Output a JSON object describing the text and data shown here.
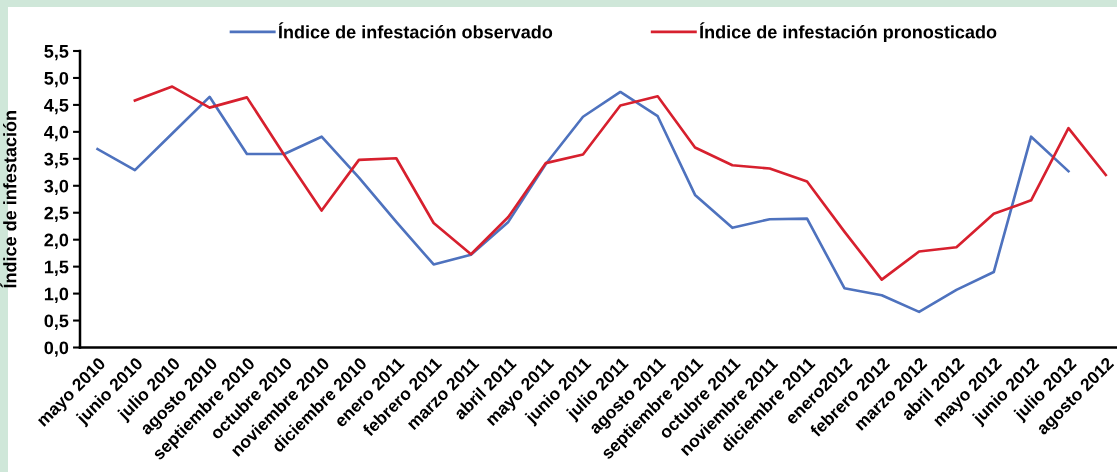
{
  "chart_data": {
    "type": "line",
    "ylabel": "Índice de infestación",
    "categories": [
      "mayo 2010",
      "junio 2010",
      "julio 2010",
      "agosto 2010",
      "septiembre 2010",
      "octubre 2010",
      "noviembre 2010",
      "diciembre 2010",
      "enero 2011",
      "febrero 2011",
      "marzo 2011",
      "abril 2011",
      "mayo 2011",
      "junio 2011",
      "julio 2011",
      "agosto 2011",
      "septiembre 2011",
      "octubre 2011",
      "noviembre 2011",
      "diciembre 2011",
      "enero2012",
      "febrero 2012",
      "marzo 2012",
      "abril 2012",
      "mayo 2012",
      "junio 2012",
      "julio 2012",
      "agosto 2012"
    ],
    "series": [
      {
        "name": "Índice de infestación observado",
        "color": "#4e72be",
        "values": [
          3.68,
          3.29,
          3.97,
          4.65,
          3.59,
          3.59,
          3.91,
          3.15,
          2.33,
          1.54,
          1.72,
          2.33,
          3.4,
          4.28,
          4.74,
          4.29,
          2.83,
          2.22,
          2.38,
          2.39,
          1.1,
          0.97,
          0.66,
          1.07,
          1.4,
          3.91,
          3.27,
          null
        ]
      },
      {
        "name": "Índice de infestación pronosticado",
        "color": "#d7202e",
        "values": [
          null,
          4.58,
          4.84,
          4.45,
          4.64,
          3.57,
          2.54,
          3.48,
          3.51,
          2.31,
          1.73,
          2.42,
          3.42,
          3.58,
          4.49,
          4.66,
          3.71,
          3.38,
          3.32,
          3.08,
          2.15,
          1.26,
          1.78,
          1.86,
          2.48,
          2.73,
          4.07,
          3.2
        ]
      }
    ],
    "ylim": [
      0,
      5.5
    ],
    "yticks": [
      {
        "value": 0,
        "label": "0,0"
      },
      {
        "value": 0.5,
        "label": "0,5"
      },
      {
        "value": 1,
        "label": "1,0"
      },
      {
        "value": 1.5,
        "label": "1,5"
      },
      {
        "value": 2,
        "label": "2,0"
      },
      {
        "value": 2.5,
        "label": "2,5"
      },
      {
        "value": 3,
        "label": "3,0"
      },
      {
        "value": 3.5,
        "label": "3,5"
      },
      {
        "value": 4,
        "label": "4,0"
      },
      {
        "value": 4.5,
        "label": "4,5"
      },
      {
        "value": 5,
        "label": "5,0"
      },
      {
        "value": 5.5,
        "label": "5,5"
      }
    ],
    "grid": false,
    "legend": "top",
    "marker": "none",
    "line_style": "solid"
  }
}
